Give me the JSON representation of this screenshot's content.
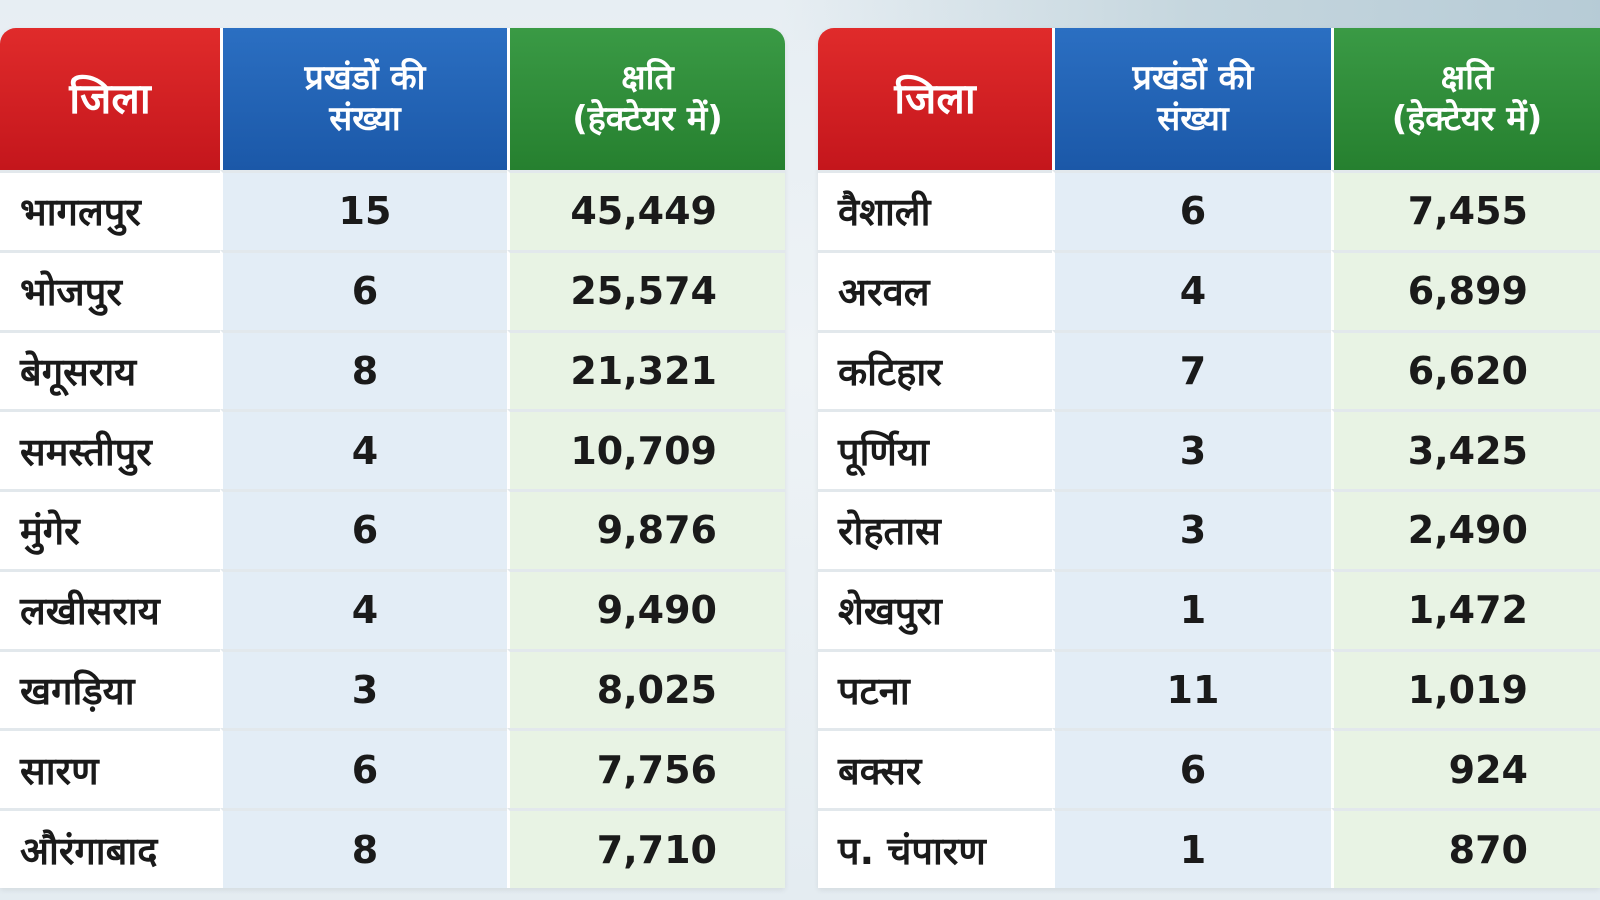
{
  "headers": {
    "district": "जिला",
    "blocks": "प्रखंडों की\nसंख्या",
    "loss": "क्षति\n(हेक्टेयर में)"
  },
  "left_table": [
    {
      "district": "भागलपुर",
      "blocks": "15",
      "loss": "45,449"
    },
    {
      "district": "भोजपुर",
      "blocks": "6",
      "loss": "25,574"
    },
    {
      "district": "बेगूसराय",
      "blocks": "8",
      "loss": "21,321"
    },
    {
      "district": "समस्तीपुर",
      "blocks": "4",
      "loss": "10,709"
    },
    {
      "district": "मुंगेर",
      "blocks": "6",
      "loss": "9,876"
    },
    {
      "district": "लखीसराय",
      "blocks": "4",
      "loss": "9,490"
    },
    {
      "district": "खगड़िया",
      "blocks": "3",
      "loss": "8,025"
    },
    {
      "district": "सारण",
      "blocks": "6",
      "loss": "7,756"
    },
    {
      "district": "औरंगाबाद",
      "blocks": "8",
      "loss": "7,710"
    }
  ],
  "right_table": [
    {
      "district": "वैशाली",
      "blocks": "6",
      "loss": "7,455"
    },
    {
      "district": "अरवल",
      "blocks": "4",
      "loss": "6,899"
    },
    {
      "district": "कटिहार",
      "blocks": "7",
      "loss": "6,620"
    },
    {
      "district": "पूर्णिया",
      "blocks": "3",
      "loss": "3,425"
    },
    {
      "district": "रोहतास",
      "blocks": "3",
      "loss": "2,490"
    },
    {
      "district": "शेखपुरा",
      "blocks": "1",
      "loss": "1,472"
    },
    {
      "district": "पटना",
      "blocks": "11",
      "loss": "1,019"
    },
    {
      "district": "बक्सर",
      "blocks": "6",
      "loss": "924"
    },
    {
      "district": "प. चंपारण",
      "blocks": "1",
      "loss": "870"
    }
  ]
}
